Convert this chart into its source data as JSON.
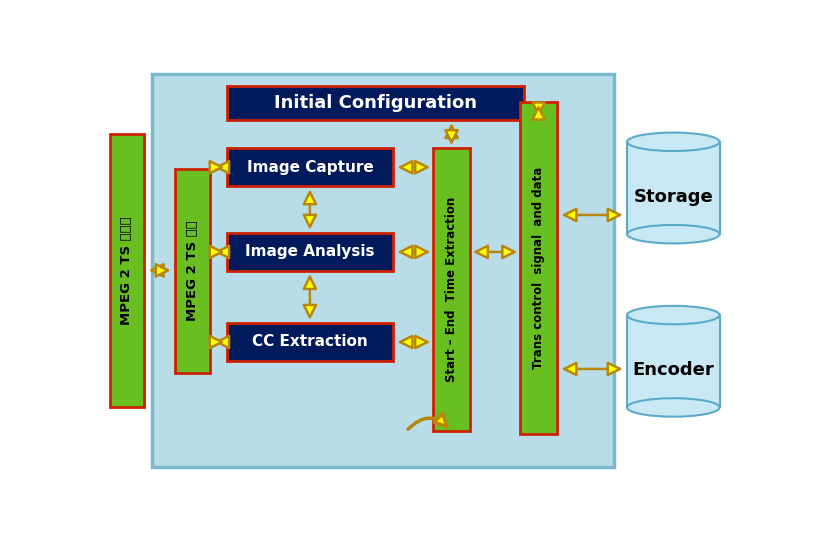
{
  "bg_color": "#b8dde8",
  "bg_border": "#7ab8cc",
  "green_color": "#6abf20",
  "navy_color": "#001a5c",
  "red_border": "#cc2200",
  "arrow_fill": "#ffff00",
  "arrow_edge": "#b8860b",
  "cyl_fill": "#c8e8f4",
  "cyl_edge": "#5aaac8",
  "title_text": "Initial Configuration",
  "box1_text": "Image Capture",
  "box2_text": "Image Analysis",
  "box3_text": "CC Extraction",
  "bar_left_text": "MPEG 2 TS 수신",
  "bar_outer_text": "MPEG 2 TS 송신기",
  "bar_mid_text": "Start – End  Time Extraction",
  "bar_right_text": "Trans control  signal  and data",
  "storage_text": "Storage",
  "encoder_text": "Encoder"
}
